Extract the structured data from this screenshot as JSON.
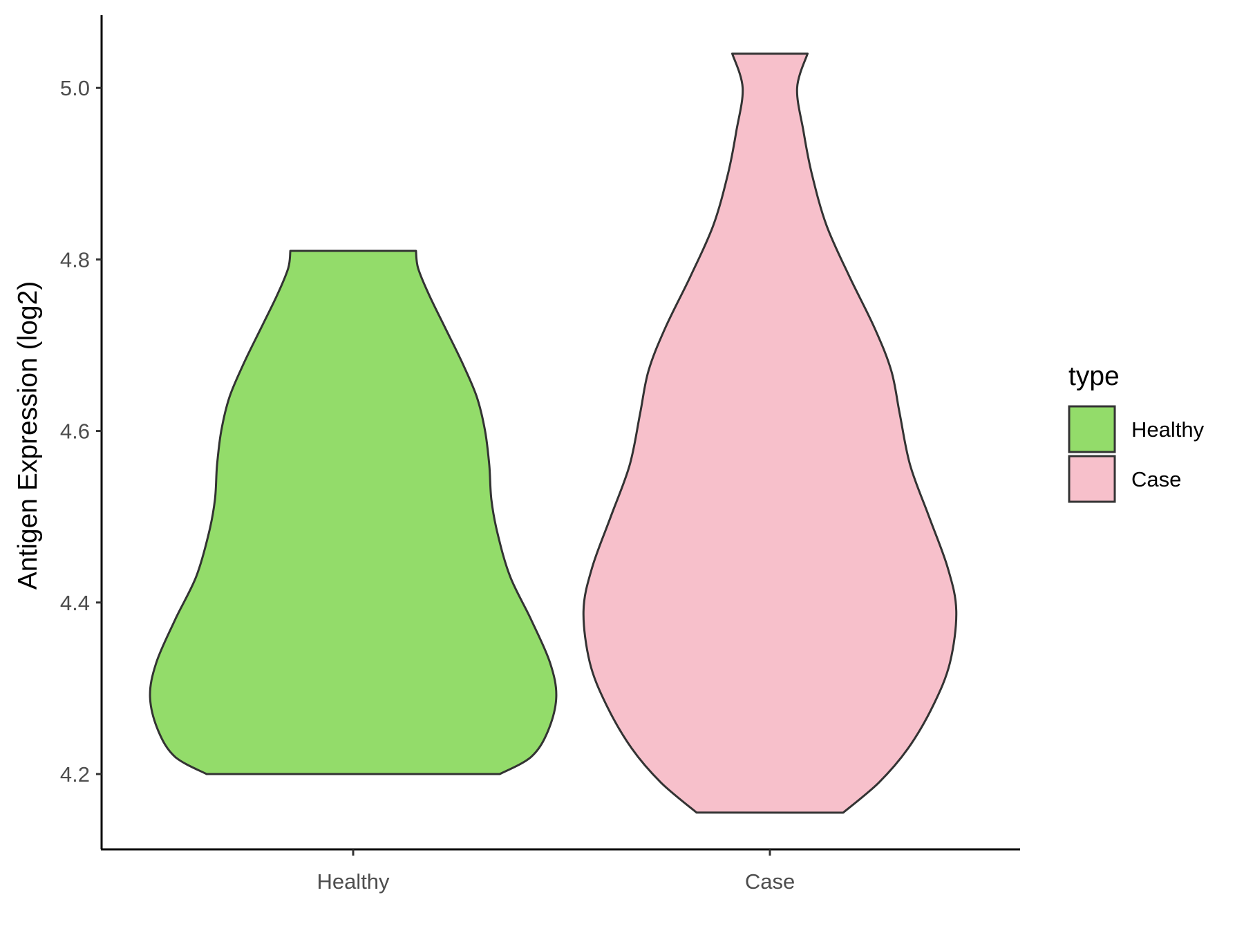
{
  "chart_data": {
    "type": "violin",
    "title": "",
    "xlabel": "",
    "ylabel": "Antigen Expression (log2)",
    "ylim": [
      4.11,
      5.08
    ],
    "yticks": [
      "4.2",
      "4.4",
      "4.6",
      "4.8",
      "5.0"
    ],
    "categories": [
      "Healthy",
      "Case"
    ],
    "legend": {
      "title": "type",
      "position": "right"
    },
    "series": [
      {
        "name": "Healthy",
        "color": "#93dc6a",
        "min": 4.2,
        "max": 4.81,
        "density": [
          [
            4.2,
            0.7
          ],
          [
            4.22,
            0.85
          ],
          [
            4.25,
            0.93
          ],
          [
            4.29,
            0.97
          ],
          [
            4.33,
            0.94
          ],
          [
            4.38,
            0.85
          ],
          [
            4.43,
            0.75
          ],
          [
            4.48,
            0.69
          ],
          [
            4.52,
            0.66
          ],
          [
            4.56,
            0.65
          ],
          [
            4.6,
            0.63
          ],
          [
            4.64,
            0.59
          ],
          [
            4.68,
            0.52
          ],
          [
            4.72,
            0.44
          ],
          [
            4.76,
            0.36
          ],
          [
            4.79,
            0.31
          ],
          [
            4.81,
            0.3
          ]
        ]
      },
      {
        "name": "Case",
        "color": "#f7c0cb",
        "min": 4.155,
        "max": 5.04,
        "density": [
          [
            4.155,
            0.35
          ],
          [
            4.19,
            0.52
          ],
          [
            4.23,
            0.66
          ],
          [
            4.28,
            0.78
          ],
          [
            4.33,
            0.86
          ],
          [
            4.39,
            0.89
          ],
          [
            4.44,
            0.85
          ],
          [
            4.5,
            0.76
          ],
          [
            4.56,
            0.67
          ],
          [
            4.62,
            0.62
          ],
          [
            4.67,
            0.58
          ],
          [
            4.72,
            0.5
          ],
          [
            4.78,
            0.38
          ],
          [
            4.84,
            0.27
          ],
          [
            4.9,
            0.2
          ],
          [
            4.95,
            0.16
          ],
          [
            5.0,
            0.13
          ],
          [
            5.04,
            0.18
          ]
        ]
      }
    ]
  }
}
